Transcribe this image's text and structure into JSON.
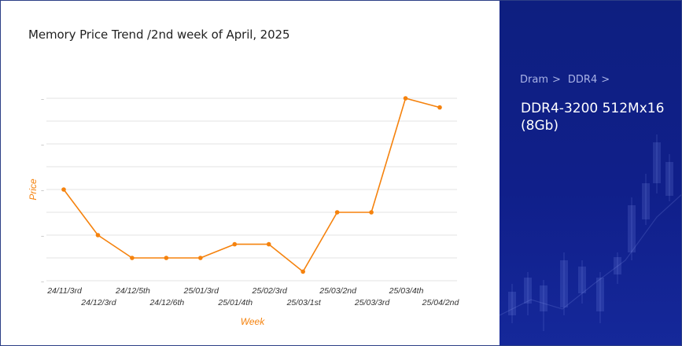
{
  "chart_panel": {
    "title": "Memory Price Trend /2nd week of April, 2025"
  },
  "chart_data": {
    "type": "line",
    "title": "Memory Price Trend /2nd week of April, 2025",
    "xlabel": "Week",
    "ylabel": "Price",
    "ytick_labels_hidden": true,
    "categories": [
      "24/11/3rd",
      "24/12/3rd",
      "24/12/5th",
      "24/12/6th",
      "25/01/3rd",
      "25/01/4th",
      "25/02/3rd",
      "25/03/1st",
      "25/03/2nd",
      "25/03/3rd",
      "25/03/4th",
      "25/04/2nd"
    ],
    "values": [
      6.0,
      5.0,
      4.5,
      4.5,
      4.5,
      4.8,
      4.8,
      4.2,
      5.5,
      5.5,
      8.0,
      7.8
    ],
    "ylim": [
      4.0,
      8.0
    ],
    "grid": true,
    "line_color": "#f5820d",
    "label_color": "#f5820d"
  },
  "side_panel": {
    "breadcrumb": [
      {
        "label": "Dram",
        "sep": ">"
      },
      {
        "label": "DDR4",
        "sep": ">"
      }
    ],
    "product_title": "DDR4-3200 512Mx16 (8Gb)",
    "background_color": "#0e1f80"
  }
}
